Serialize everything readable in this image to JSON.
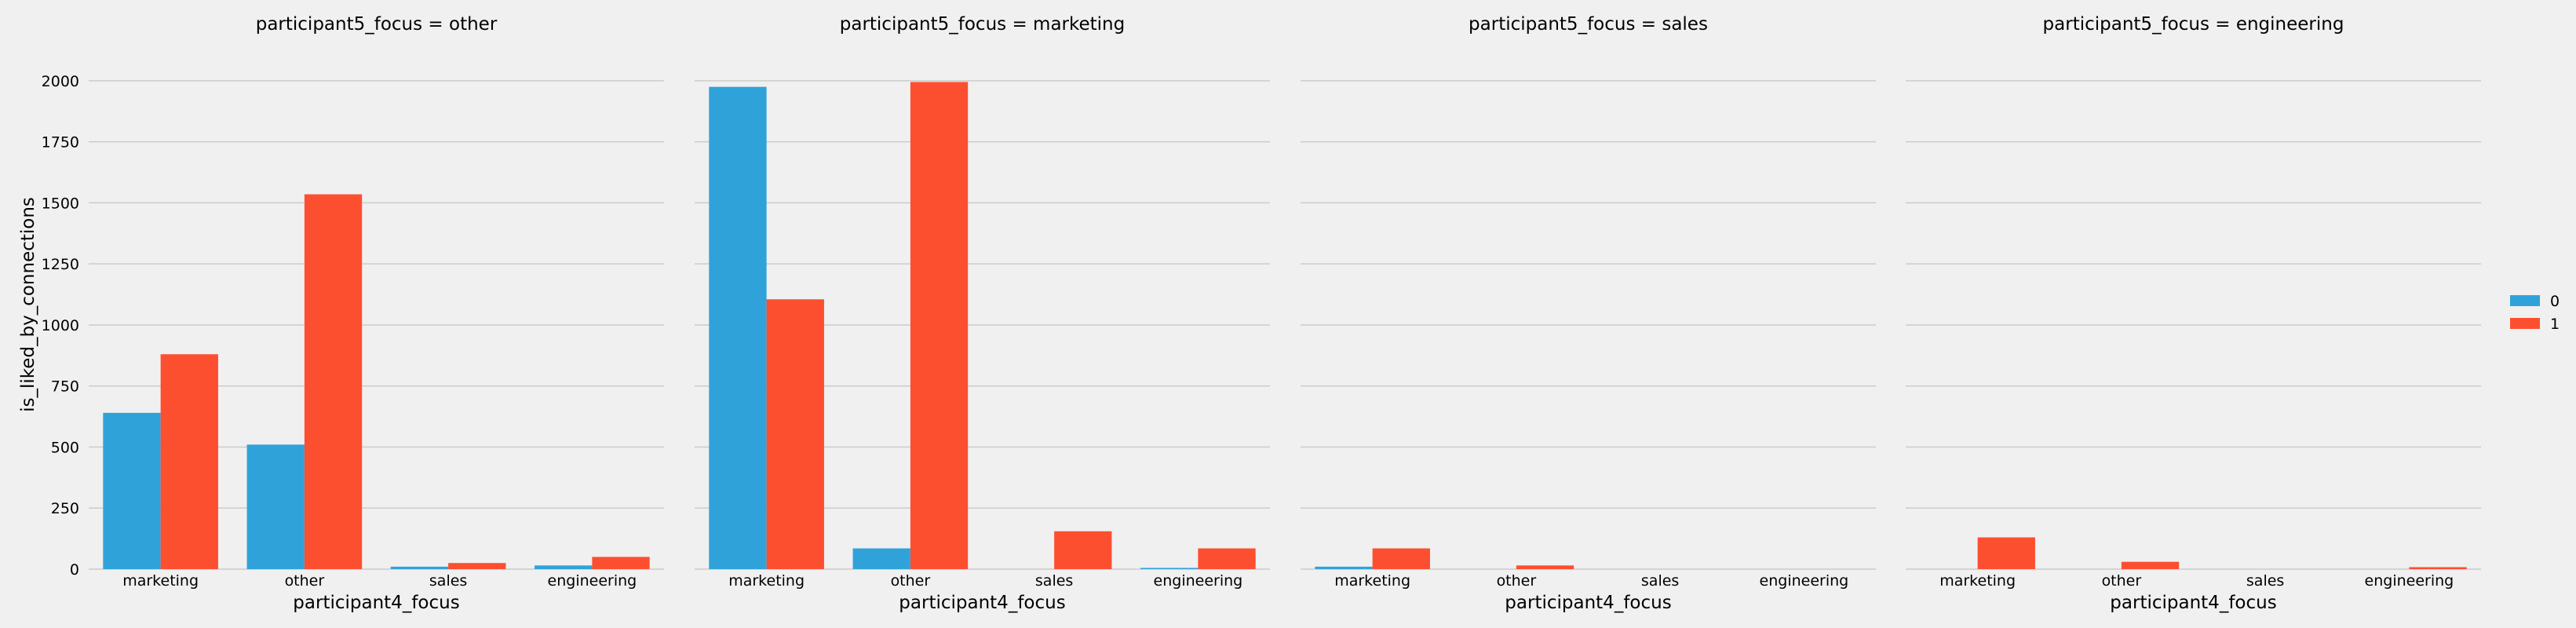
{
  "chart_data": {
    "type": "bar",
    "facet_var": "participant5_focus",
    "xlabel": "participant4_focus",
    "ylabel": "is_liked_by_connections",
    "categories": [
      "marketing",
      "other",
      "sales",
      "engineering"
    ],
    "yticks": [
      0,
      250,
      500,
      750,
      1000,
      1250,
      1500,
      1750,
      2000
    ],
    "ylim": [
      0,
      2080
    ],
    "grid": true,
    "legend": {
      "placement": "right",
      "entries": [
        {
          "label": "0",
          "color": "#30a2da"
        },
        {
          "label": "1",
          "color": "#fc4f30"
        }
      ]
    },
    "panels": [
      {
        "title": "participant5_focus = other",
        "series": [
          {
            "name": "0",
            "values": [
              640,
              510,
              10,
              15
            ]
          },
          {
            "name": "1",
            "values": [
              880,
              1535,
              25,
              50
            ]
          }
        ]
      },
      {
        "title": "participant5_focus = marketing",
        "series": [
          {
            "name": "0",
            "values": [
              1975,
              85,
              0,
              5
            ]
          },
          {
            "name": "1",
            "values": [
              1105,
              1995,
              155,
              85
            ]
          }
        ]
      },
      {
        "title": "participant5_focus = sales",
        "series": [
          {
            "name": "0",
            "values": [
              10,
              0,
              0,
              0
            ]
          },
          {
            "name": "1",
            "values": [
              85,
              15,
              0,
              0
            ]
          }
        ]
      },
      {
        "title": "participant5_focus = engineering",
        "series": [
          {
            "name": "0",
            "values": [
              0,
              0,
              0,
              0
            ]
          },
          {
            "name": "1",
            "values": [
              130,
              30,
              0,
              8
            ]
          }
        ]
      }
    ]
  }
}
